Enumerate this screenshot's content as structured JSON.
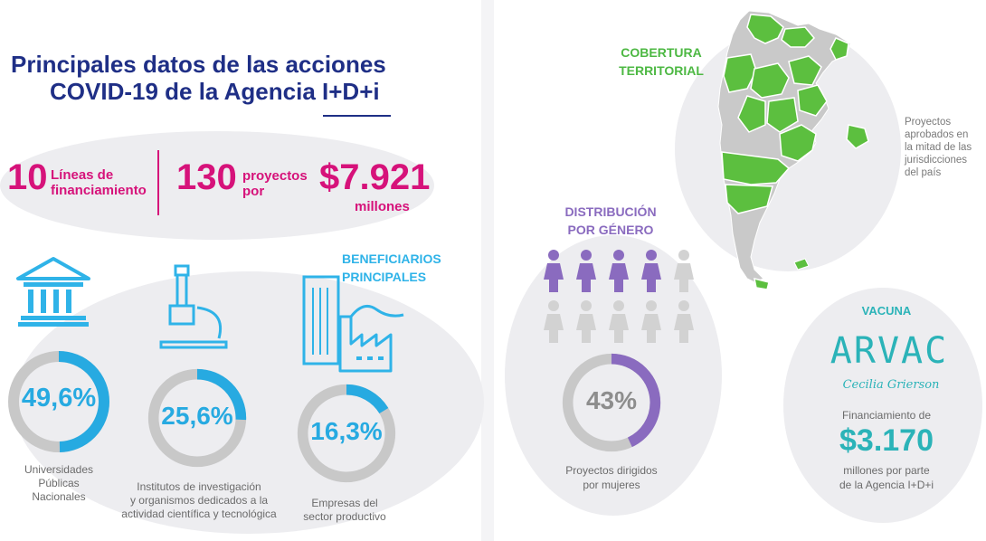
{
  "title": {
    "line1": "Principales datos de las acciones",
    "line2": "COVID-19 de la Agencia I+D+i"
  },
  "stats": {
    "lineas_num": "10",
    "lineas_label_1": "Líneas de",
    "lineas_label_2": "financiamiento",
    "proyectos_num": "130",
    "proyectos_label_1": "proyectos",
    "proyectos_label_2": "por",
    "monto": "$7.921",
    "monto_label": "millones"
  },
  "beneficiarios": {
    "title_1": "BENEFICIARIOS",
    "title_2": "PRINCIPALES",
    "items": [
      {
        "percent_text": "49,6%",
        "percent": 49.6,
        "caption_1": "Universidades",
        "caption_2": "Públicas",
        "caption_3": "Nacionales",
        "icon": "university-building-icon"
      },
      {
        "percent_text": "25,6%",
        "percent": 25.6,
        "caption_1": "Institutos de investigación",
        "caption_2": "y organismos dedicados a la",
        "caption_3": "actividad científica y tecnológica",
        "icon": "microscope-icon"
      },
      {
        "percent_text": "16,3%",
        "percent": 16.3,
        "caption_1": "Empresas del",
        "caption_2": "sector productivo",
        "icon": "factory-icon"
      }
    ]
  },
  "cobertura": {
    "title_1": "COBERTURA",
    "title_2": "TERRITORIAL",
    "caption_1": "Proyectos",
    "caption_2": "aprobados en",
    "caption_3": "la mitad de las",
    "caption_4": "jurisdicciones",
    "caption_5": "del país",
    "map_icon": "argentina-map-icon"
  },
  "genero": {
    "title_1": "DISTRIBUCIÓN",
    "title_2": "POR GÉNERO",
    "percent_text": "43%",
    "percent": 43,
    "caption_1": "Proyectos dirigidos",
    "caption_2": "por mujeres",
    "figures_total": 10,
    "figures_highlighted": 4
  },
  "vacuna": {
    "title": "VACUNA",
    "logo_text": "ARVAC",
    "signature": "Cecilia Grierson",
    "fin_label": "Financiamiento de",
    "fin_amount": "$3.170",
    "fin_caption_1": "millones por parte",
    "fin_caption_2": "de la Agencia I+D+i"
  },
  "colors": {
    "navy": "#1f2f86",
    "magenta": "#d6127a",
    "cyan": "#27aae1",
    "green": "#4db843",
    "purple": "#8a6bbf",
    "teal": "#2bb3b8",
    "gray": "#c8c8c8"
  }
}
